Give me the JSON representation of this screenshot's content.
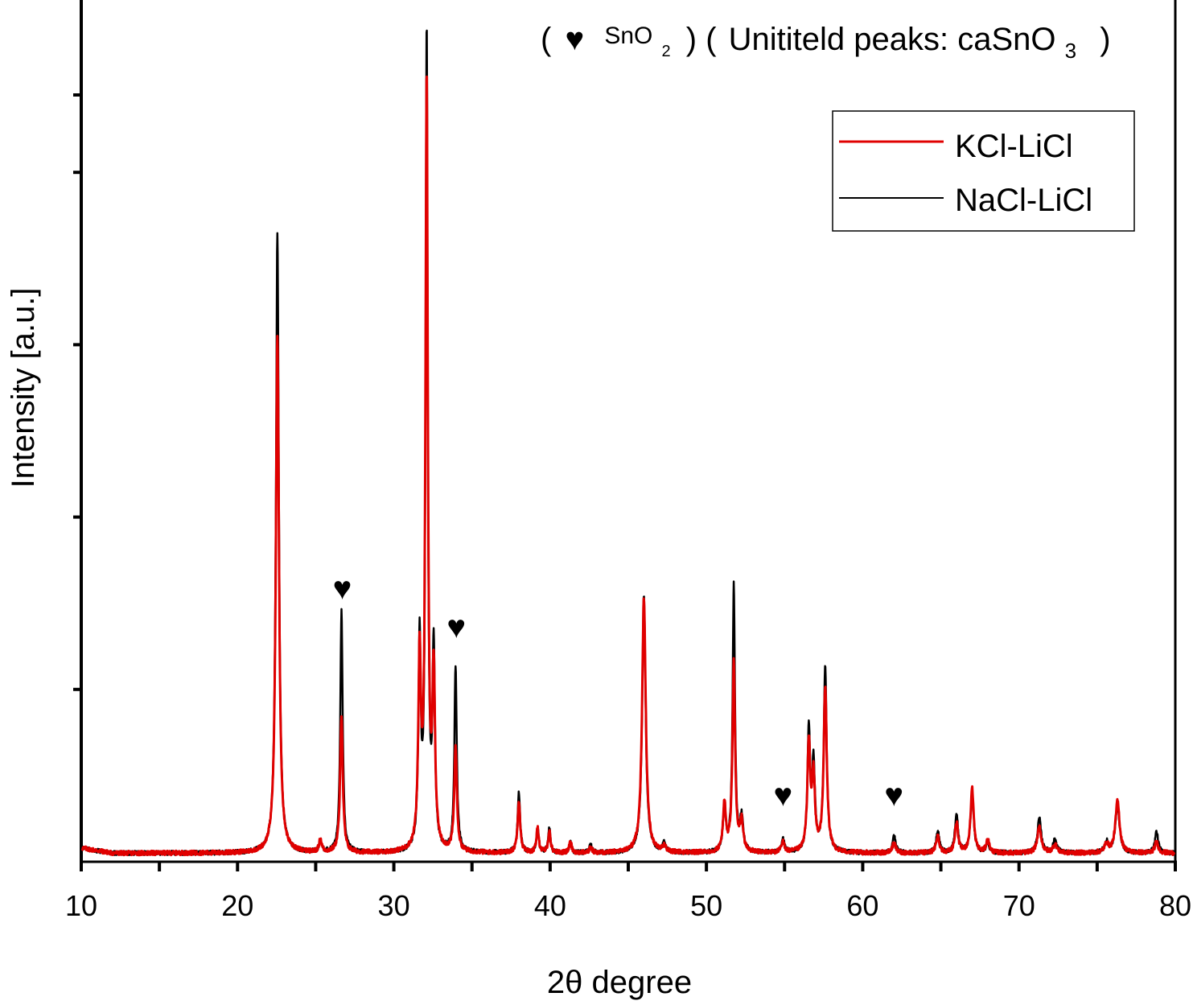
{
  "chart_data": {
    "type": "line",
    "xlabel_parts": [
      "2",
      "θ",
      " degree"
    ],
    "ylabel": "Intensity [a.u.]",
    "xlim": [
      10,
      80
    ],
    "ylim": [
      0,
      100
    ],
    "xticks": [
      10,
      20,
      30,
      40,
      50,
      60,
      70,
      80
    ],
    "x_minor_ticks": [
      15,
      25,
      35,
      45,
      55,
      65,
      75
    ],
    "y_ticks_labeled": false,
    "legend_position": "top-right",
    "annotation": {
      "open1": "(",
      "marker": "♥",
      "phase1": "SnO",
      "phase1_sub": "2",
      "close1": ")",
      "open2": "(",
      "phase2_prefix": "Unititeld peaks: caSnO",
      "phase2_sub": "3",
      "close2": ")"
    },
    "marker_symbol": "♥",
    "sno2_markers": [
      {
        "x": 26.7,
        "y": 30.5
      },
      {
        "x": 34.0,
        "y": 26.0
      },
      {
        "x": 54.9,
        "y": 6.5
      },
      {
        "x": 62.0,
        "y": 6.5
      }
    ],
    "baseline": 1.0,
    "series": [
      {
        "name": "KCl-LiCl",
        "color": "#e00000",
        "peaks": [
          {
            "x": 22.55,
            "h": 60.0,
            "w": 0.12
          },
          {
            "x": 25.3,
            "h": 1.5,
            "w": 0.1
          },
          {
            "x": 26.65,
            "h": 16.0,
            "w": 0.1
          },
          {
            "x": 31.65,
            "h": 22.0,
            "w": 0.1
          },
          {
            "x": 32.1,
            "h": 89.0,
            "w": 0.09
          },
          {
            "x": 32.55,
            "h": 20.0,
            "w": 0.1
          },
          {
            "x": 33.95,
            "h": 12.0,
            "w": 0.1
          },
          {
            "x": 38.0,
            "h": 6.0,
            "w": 0.1
          },
          {
            "x": 39.2,
            "h": 2.8,
            "w": 0.09
          },
          {
            "x": 39.95,
            "h": 2.5,
            "w": 0.09
          },
          {
            "x": 41.3,
            "h": 1.3,
            "w": 0.09
          },
          {
            "x": 42.6,
            "h": 0.6,
            "w": 0.1
          },
          {
            "x": 46.0,
            "h": 29.5,
            "w": 0.14
          },
          {
            "x": 47.3,
            "h": 0.7,
            "w": 0.12
          },
          {
            "x": 51.15,
            "h": 5.5,
            "w": 0.11
          },
          {
            "x": 51.75,
            "h": 22.0,
            "w": 0.1
          },
          {
            "x": 52.25,
            "h": 3.5,
            "w": 0.12
          },
          {
            "x": 54.9,
            "h": 1.2,
            "w": 0.12
          },
          {
            "x": 56.55,
            "h": 12.5,
            "w": 0.11
          },
          {
            "x": 56.85,
            "h": 8.5,
            "w": 0.11
          },
          {
            "x": 57.6,
            "h": 19.0,
            "w": 0.12
          },
          {
            "x": 62.0,
            "h": 1.2,
            "w": 0.12
          },
          {
            "x": 64.8,
            "h": 2.0,
            "w": 0.12
          },
          {
            "x": 66.0,
            "h": 3.5,
            "w": 0.12
          },
          {
            "x": 67.0,
            "h": 7.5,
            "w": 0.12
          },
          {
            "x": 68.0,
            "h": 1.5,
            "w": 0.12
          },
          {
            "x": 71.3,
            "h": 3.0,
            "w": 0.15
          },
          {
            "x": 72.3,
            "h": 1.0,
            "w": 0.15
          },
          {
            "x": 75.6,
            "h": 1.0,
            "w": 0.15
          },
          {
            "x": 76.3,
            "h": 6.0,
            "w": 0.16
          },
          {
            "x": 78.8,
            "h": 1.3,
            "w": 0.13
          }
        ]
      },
      {
        "name": "NaCl-LiCl",
        "color": "#000000",
        "peaks": [
          {
            "x": 22.55,
            "h": 72.0,
            "w": 0.11
          },
          {
            "x": 25.3,
            "h": 1.3,
            "w": 0.1
          },
          {
            "x": 26.65,
            "h": 28.0,
            "w": 0.09
          },
          {
            "x": 31.65,
            "h": 24.0,
            "w": 0.09
          },
          {
            "x": 32.1,
            "h": 95.0,
            "w": 0.08
          },
          {
            "x": 32.55,
            "h": 23.0,
            "w": 0.09
          },
          {
            "x": 33.95,
            "h": 21.5,
            "w": 0.09
          },
          {
            "x": 38.0,
            "h": 7.0,
            "w": 0.1
          },
          {
            "x": 39.2,
            "h": 3.0,
            "w": 0.09
          },
          {
            "x": 39.95,
            "h": 2.8,
            "w": 0.09
          },
          {
            "x": 41.3,
            "h": 1.2,
            "w": 0.09
          },
          {
            "x": 42.6,
            "h": 1.0,
            "w": 0.1
          },
          {
            "x": 46.0,
            "h": 30.0,
            "w": 0.13
          },
          {
            "x": 47.3,
            "h": 1.0,
            "w": 0.12
          },
          {
            "x": 51.15,
            "h": 5.0,
            "w": 0.11
          },
          {
            "x": 51.75,
            "h": 31.0,
            "w": 0.09
          },
          {
            "x": 52.25,
            "h": 3.8,
            "w": 0.12
          },
          {
            "x": 54.9,
            "h": 1.5,
            "w": 0.12
          },
          {
            "x": 56.55,
            "h": 14.0,
            "w": 0.1
          },
          {
            "x": 56.85,
            "h": 10.0,
            "w": 0.11
          },
          {
            "x": 57.6,
            "h": 21.5,
            "w": 0.11
          },
          {
            "x": 62.0,
            "h": 2.0,
            "w": 0.12
          },
          {
            "x": 64.8,
            "h": 2.5,
            "w": 0.12
          },
          {
            "x": 66.0,
            "h": 4.5,
            "w": 0.12
          },
          {
            "x": 67.0,
            "h": 7.0,
            "w": 0.12
          },
          {
            "x": 68.0,
            "h": 1.2,
            "w": 0.12
          },
          {
            "x": 71.3,
            "h": 4.0,
            "w": 0.14
          },
          {
            "x": 72.3,
            "h": 1.5,
            "w": 0.15
          },
          {
            "x": 75.6,
            "h": 1.2,
            "w": 0.15
          },
          {
            "x": 76.3,
            "h": 5.5,
            "w": 0.16
          },
          {
            "x": 78.8,
            "h": 2.5,
            "w": 0.12
          }
        ]
      }
    ]
  }
}
